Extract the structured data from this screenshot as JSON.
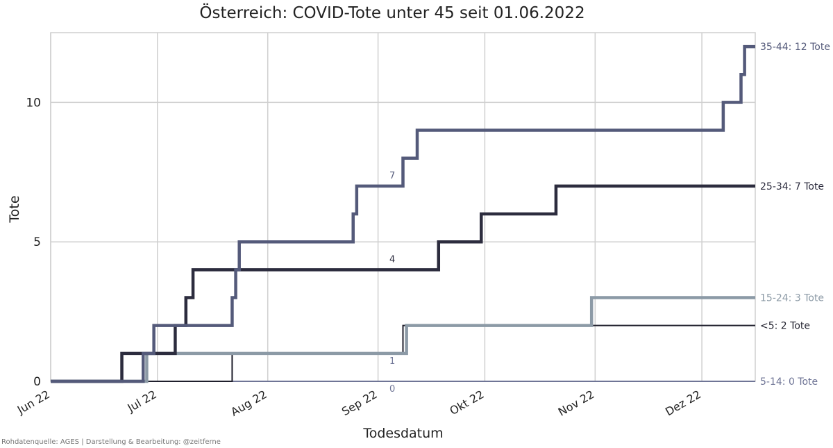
{
  "chart_data": {
    "type": "line",
    "step": true,
    "title": "Österreich: COVID-Tote unter 45 seit 01.06.2022",
    "xlabel": "Todesdatum",
    "ylabel": "Tote",
    "xlim": [
      "2022-06-01",
      "2022-12-16"
    ],
    "ylim": [
      0,
      12.5
    ],
    "x_ticks": [
      {
        "date": "2022-06-01",
        "label": "Jun 22"
      },
      {
        "date": "2022-07-01",
        "label": "Jul 22"
      },
      {
        "date": "2022-08-01",
        "label": "Aug 22"
      },
      {
        "date": "2022-09-01",
        "label": "Sep 22"
      },
      {
        "date": "2022-10-01",
        "label": "Okt 22"
      },
      {
        "date": "2022-11-01",
        "label": "Nov 22"
      },
      {
        "date": "2022-12-01",
        "label": "Dez 22"
      }
    ],
    "y_ticks": [
      0,
      5,
      10
    ],
    "grid": true,
    "series": [
      {
        "name": "5-14",
        "label": "5-14: 0 Tote",
        "color": "#6f7596",
        "width": 2,
        "points": [
          [
            "2022-06-01",
            0
          ],
          [
            "2022-12-16",
            0
          ]
        ]
      },
      {
        "name": "<5",
        "label": "<5: 2 Tote",
        "color": "#1f1f2c",
        "width": 2,
        "points": [
          [
            "2022-06-01",
            0
          ],
          [
            "2022-07-22",
            1
          ],
          [
            "2022-09-08",
            2
          ],
          [
            "2022-12-16",
            2
          ]
        ]
      },
      {
        "name": "15-24",
        "label": "15-24: 3 Tote",
        "color": "#8c9aa6",
        "width": 4.5,
        "points": [
          [
            "2022-06-01",
            0
          ],
          [
            "2022-06-28",
            1
          ],
          [
            "2022-09-09",
            2
          ],
          [
            "2022-10-31",
            3
          ],
          [
            "2022-12-16",
            3
          ]
        ]
      },
      {
        "name": "25-34",
        "label": "25-34: 7 Tote",
        "color": "#2c2c3e",
        "width": 4.5,
        "points": [
          [
            "2022-06-01",
            0
          ],
          [
            "2022-06-21",
            1
          ],
          [
            "2022-07-06",
            2
          ],
          [
            "2022-07-09",
            3
          ],
          [
            "2022-07-11",
            4
          ],
          [
            "2022-09-18",
            5
          ],
          [
            "2022-09-30",
            6
          ],
          [
            "2022-10-21",
            7
          ],
          [
            "2022-12-16",
            7
          ]
        ]
      },
      {
        "name": "35-44",
        "label": "35-44: 12 Tote",
        "color": "#545a7a",
        "width": 4.5,
        "points": [
          [
            "2022-06-01",
            0
          ],
          [
            "2022-06-27",
            1
          ],
          [
            "2022-06-30",
            2
          ],
          [
            "2022-07-22",
            3
          ],
          [
            "2022-07-23",
            4
          ],
          [
            "2022-07-24",
            5
          ],
          [
            "2022-08-25",
            6
          ],
          [
            "2022-08-26",
            7
          ],
          [
            "2022-09-08",
            8
          ],
          [
            "2022-09-12",
            9
          ],
          [
            "2022-12-07",
            10
          ],
          [
            "2022-12-12",
            11
          ],
          [
            "2022-12-13",
            12
          ],
          [
            "2022-12-16",
            12
          ]
        ]
      }
    ],
    "annotations": [
      {
        "text": "7",
        "date": "2022-09-05",
        "y": 7.4,
        "color": "#545a7a"
      },
      {
        "text": "4",
        "date": "2022-09-05",
        "y": 4.4,
        "color": "#2c2c3e"
      },
      {
        "text": "1",
        "date": "2022-09-05",
        "y": 0.75,
        "color": "#6f7596"
      },
      {
        "text": "0",
        "date": "2022-09-05",
        "y": -0.25,
        "color": "#6f7596"
      }
    ]
  },
  "source_note": "Rohdatenquelle: AGES | Darstellung & Bearbeitung: @zeitferne"
}
